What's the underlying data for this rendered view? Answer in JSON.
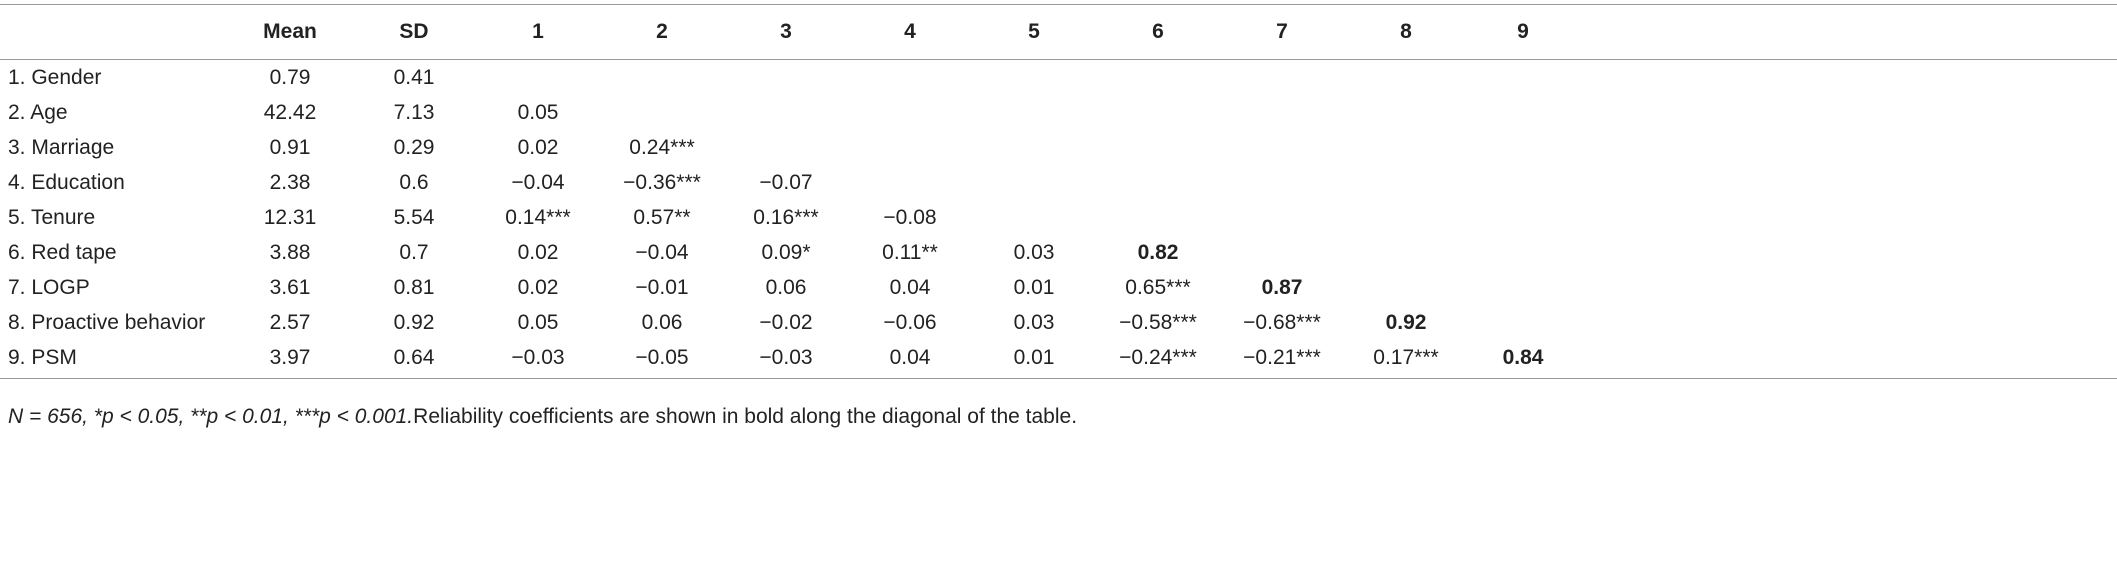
{
  "table": {
    "columns": [
      "Mean",
      "SD",
      "1",
      "2",
      "3",
      "4",
      "5",
      "6",
      "7",
      "8",
      "9"
    ],
    "rows": [
      {
        "label": "1. Gender",
        "cells": [
          "0.79",
          "0.41"
        ]
      },
      {
        "label": "2. Age",
        "cells": [
          "42.42",
          "7.13",
          "0.05"
        ]
      },
      {
        "label": "3. Marriage",
        "cells": [
          "0.91",
          "0.29",
          "0.02",
          "0.24***"
        ]
      },
      {
        "label": "4. Education",
        "cells": [
          "2.38",
          "0.6",
          "−0.04",
          "−0.36***",
          "−0.07"
        ]
      },
      {
        "label": "5. Tenure",
        "cells": [
          "12.31",
          "5.54",
          "0.14***",
          "0.57**",
          "0.16***",
          "−0.08"
        ]
      },
      {
        "label": "6. Red tape",
        "cells": [
          "3.88",
          "0.7",
          "0.02",
          "−0.04",
          "0.09*",
          "0.11**",
          "0.03",
          "0.82"
        ]
      },
      {
        "label": "7. LOGP",
        "cells": [
          "3.61",
          "0.81",
          "0.02",
          "−0.01",
          "0.06",
          "0.04",
          "0.01",
          "0.65***",
          "0.87"
        ]
      },
      {
        "label": "8. Proactive behavior",
        "cells": [
          "2.57",
          "0.92",
          "0.05",
          "0.06",
          "−0.02",
          "−0.06",
          "0.03",
          "−0.58***",
          "−0.68***",
          "0.92"
        ]
      },
      {
        "label": "9. PSM",
        "cells": [
          "3.97",
          "0.64",
          "−0.03",
          "−0.05",
          "−0.03",
          "0.04",
          "0.01",
          "−0.24***",
          "−0.21***",
          "0.17***",
          "0.84"
        ]
      }
    ],
    "diagonal_bold": true
  },
  "footnote": {
    "italic": "N = 656, *p < 0.05, **p < 0.01, ***p < 0.001.",
    "text": "Reliability coefficients are shown in bold along the diagonal of the table."
  }
}
